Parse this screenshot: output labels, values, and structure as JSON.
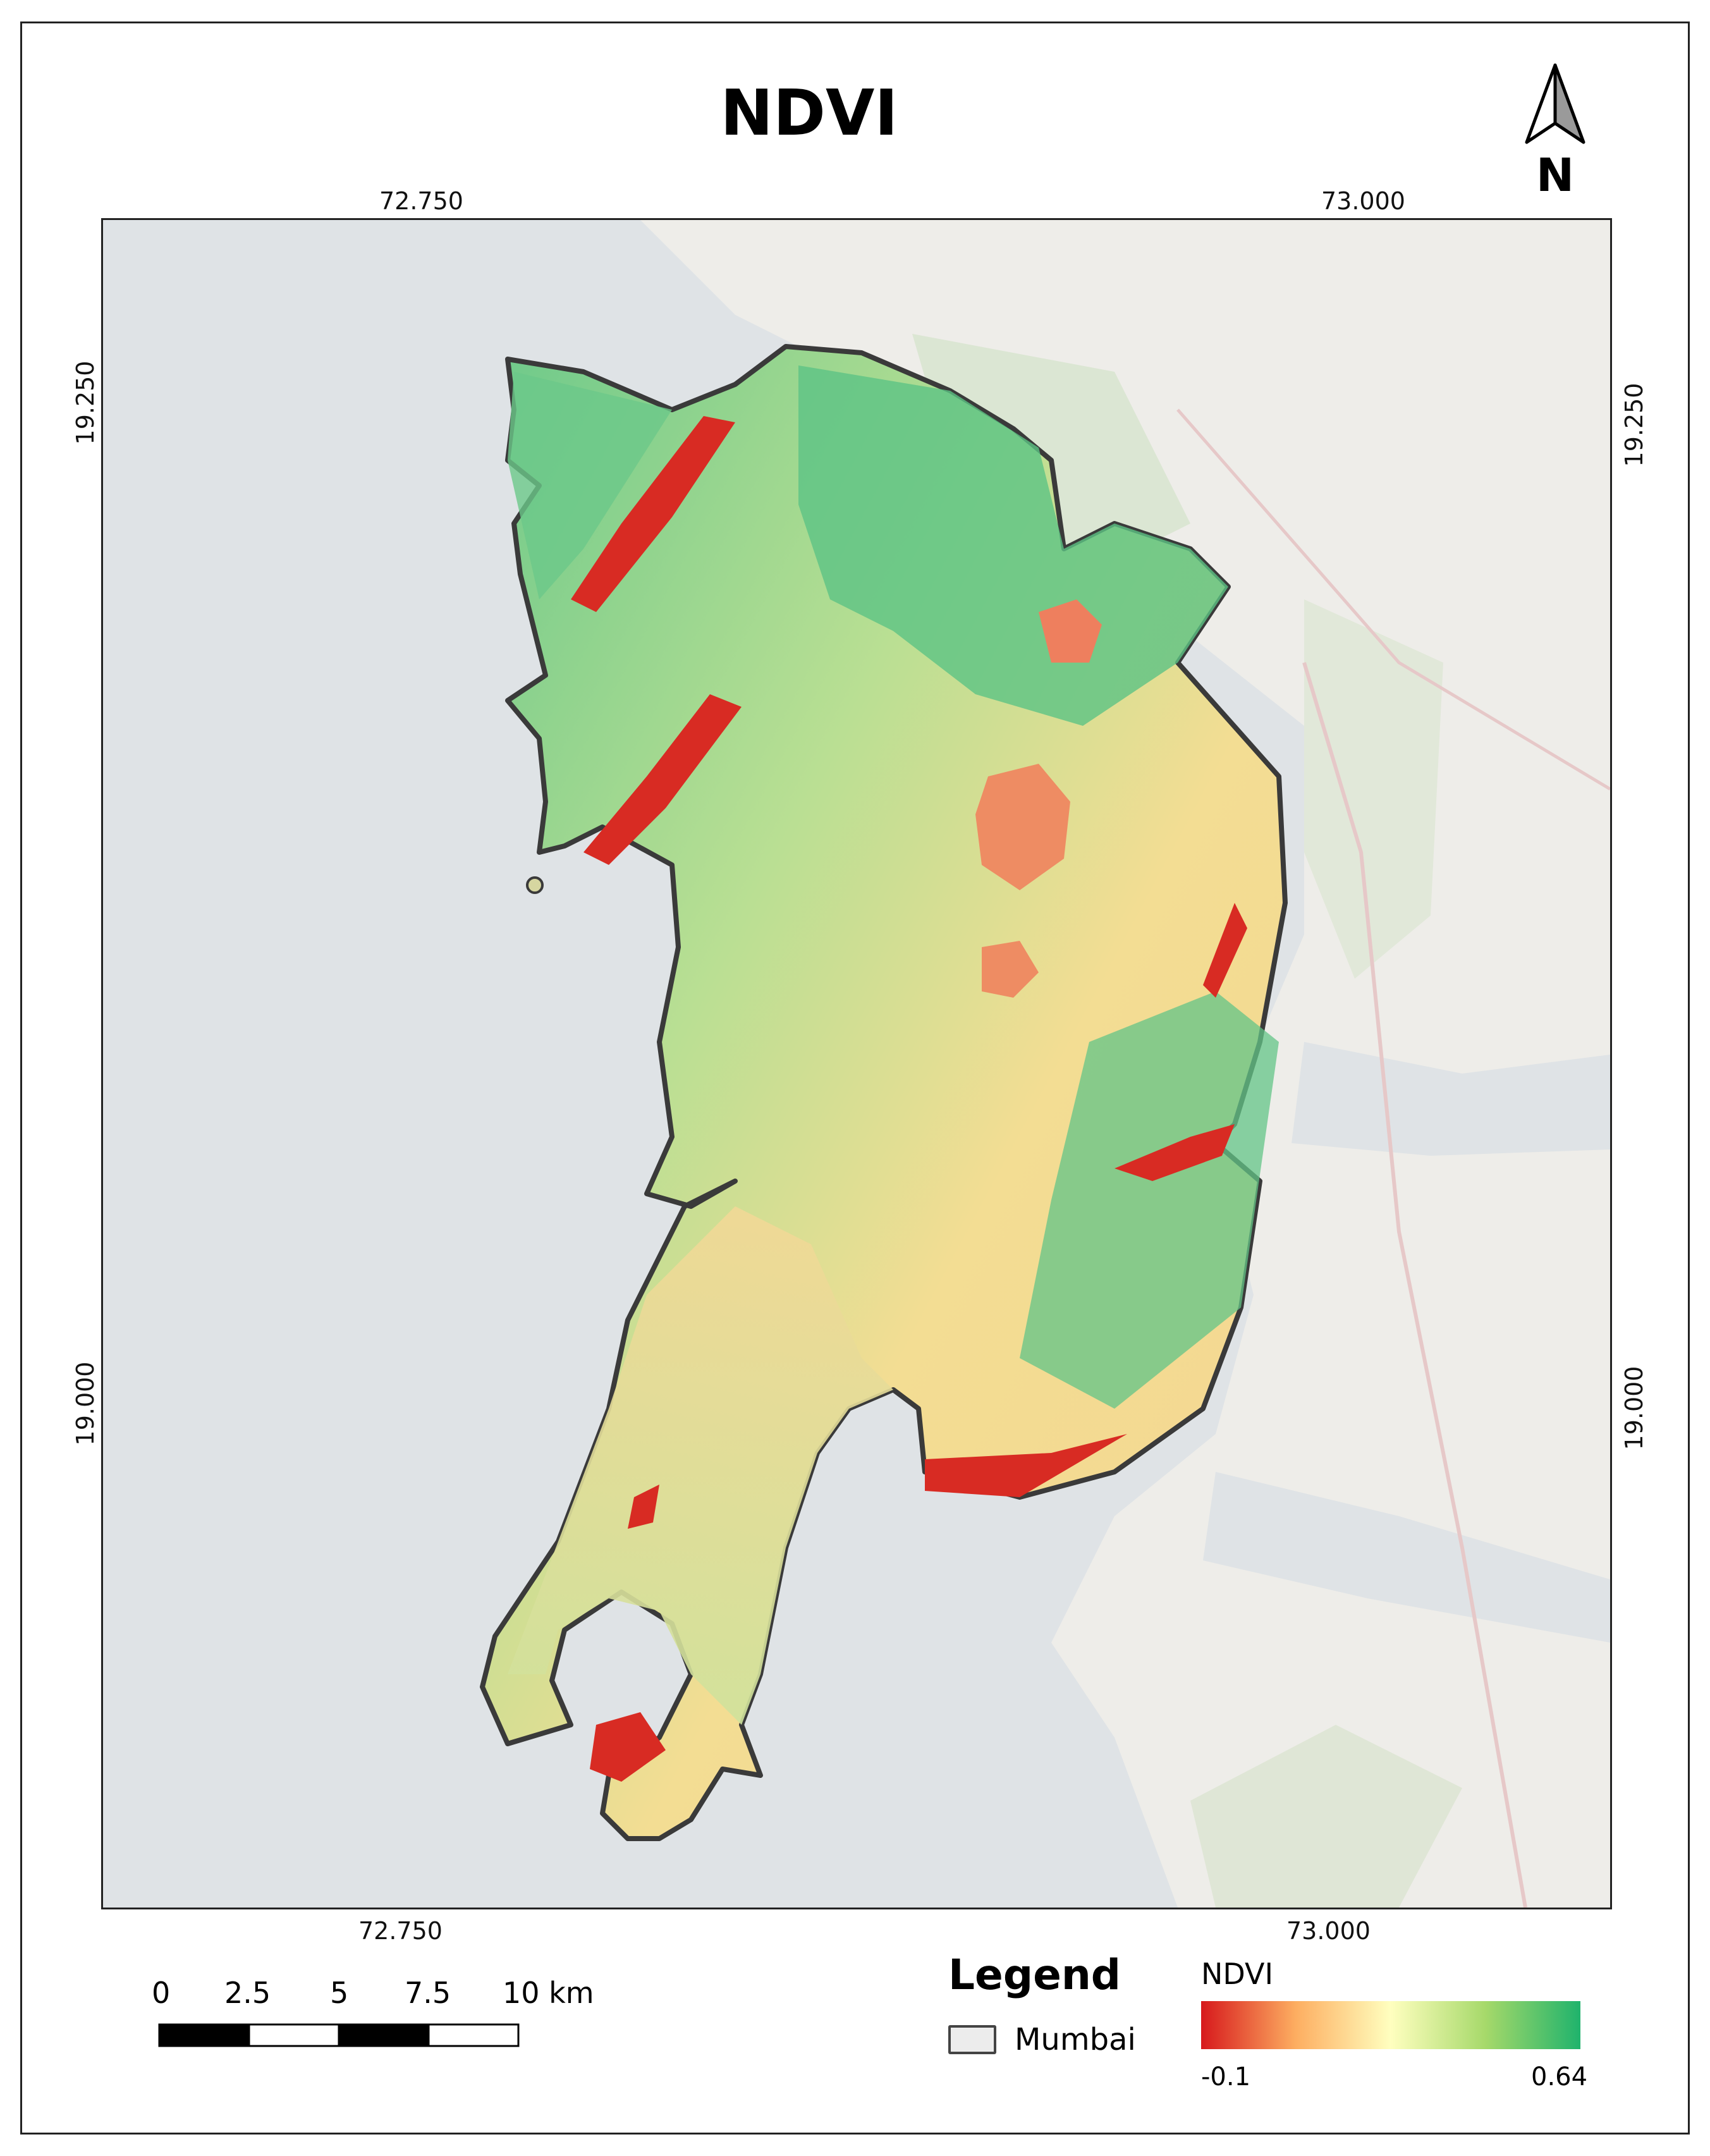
{
  "map": {
    "title": "NDVI",
    "north_arrow": {
      "label": "N",
      "icon": "north-arrow-icon"
    },
    "graticule": {
      "top": [
        "72.750",
        "73.000"
      ],
      "bottom": [
        "72.750",
        "73.000"
      ],
      "left": [
        "19.250",
        "19.000"
      ],
      "right": [
        "19.250",
        "19.000"
      ]
    },
    "colors": {
      "water": "#dfe3e6",
      "land": "#f1f0ec",
      "ndvi_low": "#d7191c",
      "ndvi_mid": "#ffffbf",
      "ndvi_high": "#1fb36c",
      "boundary": "#3a3a3a"
    }
  },
  "scale_bar": {
    "labels": [
      "0",
      "2.5",
      "5",
      "7.5",
      "10 km"
    ]
  },
  "legend": {
    "title": "Legend",
    "layer_label": "Mumbai",
    "ramp_title": "NDVI",
    "ramp_min": "-0.1",
    "ramp_max": "0.64"
  }
}
